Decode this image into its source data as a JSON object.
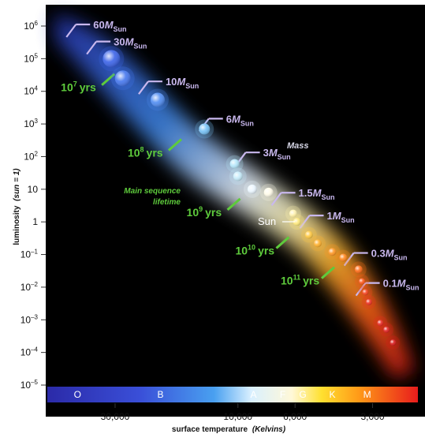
{
  "chart_data": {
    "type": "scatter",
    "title": "",
    "xlabel": "surface temperature",
    "xlabel_unit": "(Kelvins)",
    "ylabel": "luminosity",
    "ylabel_unit": "(sun = 1)",
    "x_scale": "log, reversed",
    "y_scale": "log",
    "xlim": [
      55000,
      2000
    ],
    "ylim": [
      1e-05,
      1000000
    ],
    "y_ticks": [
      {
        "value": 1000000,
        "base": "10",
        "exp": "6"
      },
      {
        "value": 100000,
        "base": "10",
        "exp": "5"
      },
      {
        "value": 10000,
        "base": "10",
        "exp": "4"
      },
      {
        "value": 1000,
        "base": "10",
        "exp": "3"
      },
      {
        "value": 100,
        "base": "10",
        "exp": "2"
      },
      {
        "value": 10,
        "base": "10",
        "exp": ""
      },
      {
        "value": 1,
        "base": "1",
        "exp": ""
      },
      {
        "value": 0.1,
        "base": "10",
        "exp": "–1"
      },
      {
        "value": 0.01,
        "base": "10",
        "exp": "–2"
      },
      {
        "value": 0.001,
        "base": "10",
        "exp": "–3"
      },
      {
        "value": 0.0001,
        "base": "10",
        "exp": "–4"
      },
      {
        "value": 1e-05,
        "base": "10",
        "exp": "–5"
      }
    ],
    "x_ticks": [
      {
        "value": 30000,
        "label": "30,000"
      },
      {
        "value": 10000,
        "label": "10,000"
      },
      {
        "value": 6000,
        "label": "6,000"
      },
      {
        "value": 3000,
        "label": "3,000"
      }
    ],
    "spectral_classes": [
      {
        "label": "O",
        "temp": 42000
      },
      {
        "label": "B",
        "temp": 20000
      },
      {
        "label": "A",
        "temp": 8700
      },
      {
        "label": "F",
        "temp": 6700
      },
      {
        "label": "G",
        "temp": 5600
      },
      {
        "label": "K",
        "temp": 4300
      },
      {
        "label": "M",
        "temp": 3150
      }
    ],
    "stars": [
      {
        "temp": 31000,
        "lum": 100000,
        "color": "#3a62e8",
        "size": 11
      },
      {
        "temp": 28000,
        "lum": 25000,
        "color": "#4476ee",
        "size": 10
      },
      {
        "temp": 20500,
        "lum": 5500,
        "color": "#4f8cf2",
        "size": 9
      },
      {
        "temp": 13500,
        "lum": 700,
        "color": "#76c2f7",
        "size": 7
      },
      {
        "temp": 10300,
        "lum": 60,
        "color": "#b4e6fb",
        "size": 6
      },
      {
        "temp": 10000,
        "lum": 25,
        "color": "#c6ecfb",
        "size": 6
      },
      {
        "temp": 8800,
        "lum": 10,
        "color": "#eaf6ff",
        "size": 6
      },
      {
        "temp": 7600,
        "lum": 8,
        "color": "#fffbe8",
        "size": 6
      },
      {
        "temp": 6100,
        "lum": 1.8,
        "color": "#fff2b0",
        "size": 5
      },
      {
        "temp": 5900,
        "lum": 1,
        "color": "#ffe97a",
        "size": 5
      },
      {
        "temp": 5300,
        "lum": 0.4,
        "color": "#ffc840",
        "size": 5
      },
      {
        "temp": 4900,
        "lum": 0.22,
        "color": "#ffb02a",
        "size": 5
      },
      {
        "temp": 4300,
        "lum": 0.12,
        "color": "#ff9520",
        "size": 5
      },
      {
        "temp": 3900,
        "lum": 0.08,
        "color": "#ff8418",
        "size": 5
      },
      {
        "temp": 3400,
        "lum": 0.035,
        "color": "#ff6a14",
        "size": 5
      },
      {
        "temp": 3300,
        "lum": 0.015,
        "color": "#ff5414",
        "size": 4
      },
      {
        "temp": 3200,
        "lum": 0.007,
        "color": "#f5401a",
        "size": 4
      },
      {
        "temp": 3100,
        "lum": 0.0035,
        "color": "#ee3020",
        "size": 4
      },
      {
        "temp": 2800,
        "lum": 0.0008,
        "color": "#e82820",
        "size": 4
      },
      {
        "temp": 2650,
        "lum": 0.0005,
        "color": "#e02020",
        "size": 4
      },
      {
        "temp": 2500,
        "lum": 0.0002,
        "color": "#d81818",
        "size": 4
      }
    ],
    "mass_labels": [
      {
        "text": "60",
        "temp": 42000,
        "lum": 1000000
      },
      {
        "text": "30",
        "temp": 35000,
        "lum": 300000
      },
      {
        "text": "10",
        "temp": 22000,
        "lum": 18000
      },
      {
        "text": "6",
        "temp": 12800,
        "lum": 1300
      },
      {
        "text": "3",
        "temp": 9200,
        "lum": 120
      },
      {
        "text": "1.5",
        "temp": 6700,
        "lum": 7
      },
      {
        "text": "1",
        "temp": 5200,
        "lum": 1.4
      },
      {
        "text": "0.3",
        "temp": 3500,
        "lum": 0.1
      },
      {
        "text": "0.1",
        "temp": 3150,
        "lum": 0.012
      }
    ],
    "mass_symbol": "M",
    "mass_subscript": "Sun",
    "lifetime_labels": [
      {
        "base": "10",
        "exp": "7",
        "unit": "yrs",
        "temp": 40000,
        "lum": 10000
      },
      {
        "base": "10",
        "exp": "8",
        "unit": "yrs",
        "temp": 22000,
        "lum": 100
      },
      {
        "base": "10",
        "exp": "9",
        "unit": "yrs",
        "temp": 13000,
        "lum": 1.5
      },
      {
        "base": "10",
        "exp": "10",
        "unit": "yrs",
        "temp": 8400,
        "lum": 0.1
      },
      {
        "base": "10",
        "exp": "11",
        "unit": "yrs",
        "temp": 5600,
        "lum": 0.012
      }
    ],
    "sun_label": "Sun",
    "annotations": {
      "mass": "Mass",
      "lifetime_line1": "Main sequence",
      "lifetime_line2": "lifetime"
    },
    "colors": {
      "background": "#000000",
      "mass_label": "#c9b8ee",
      "lifetime_label": "#5ecb3c",
      "frame": "#ffffff"
    }
  }
}
